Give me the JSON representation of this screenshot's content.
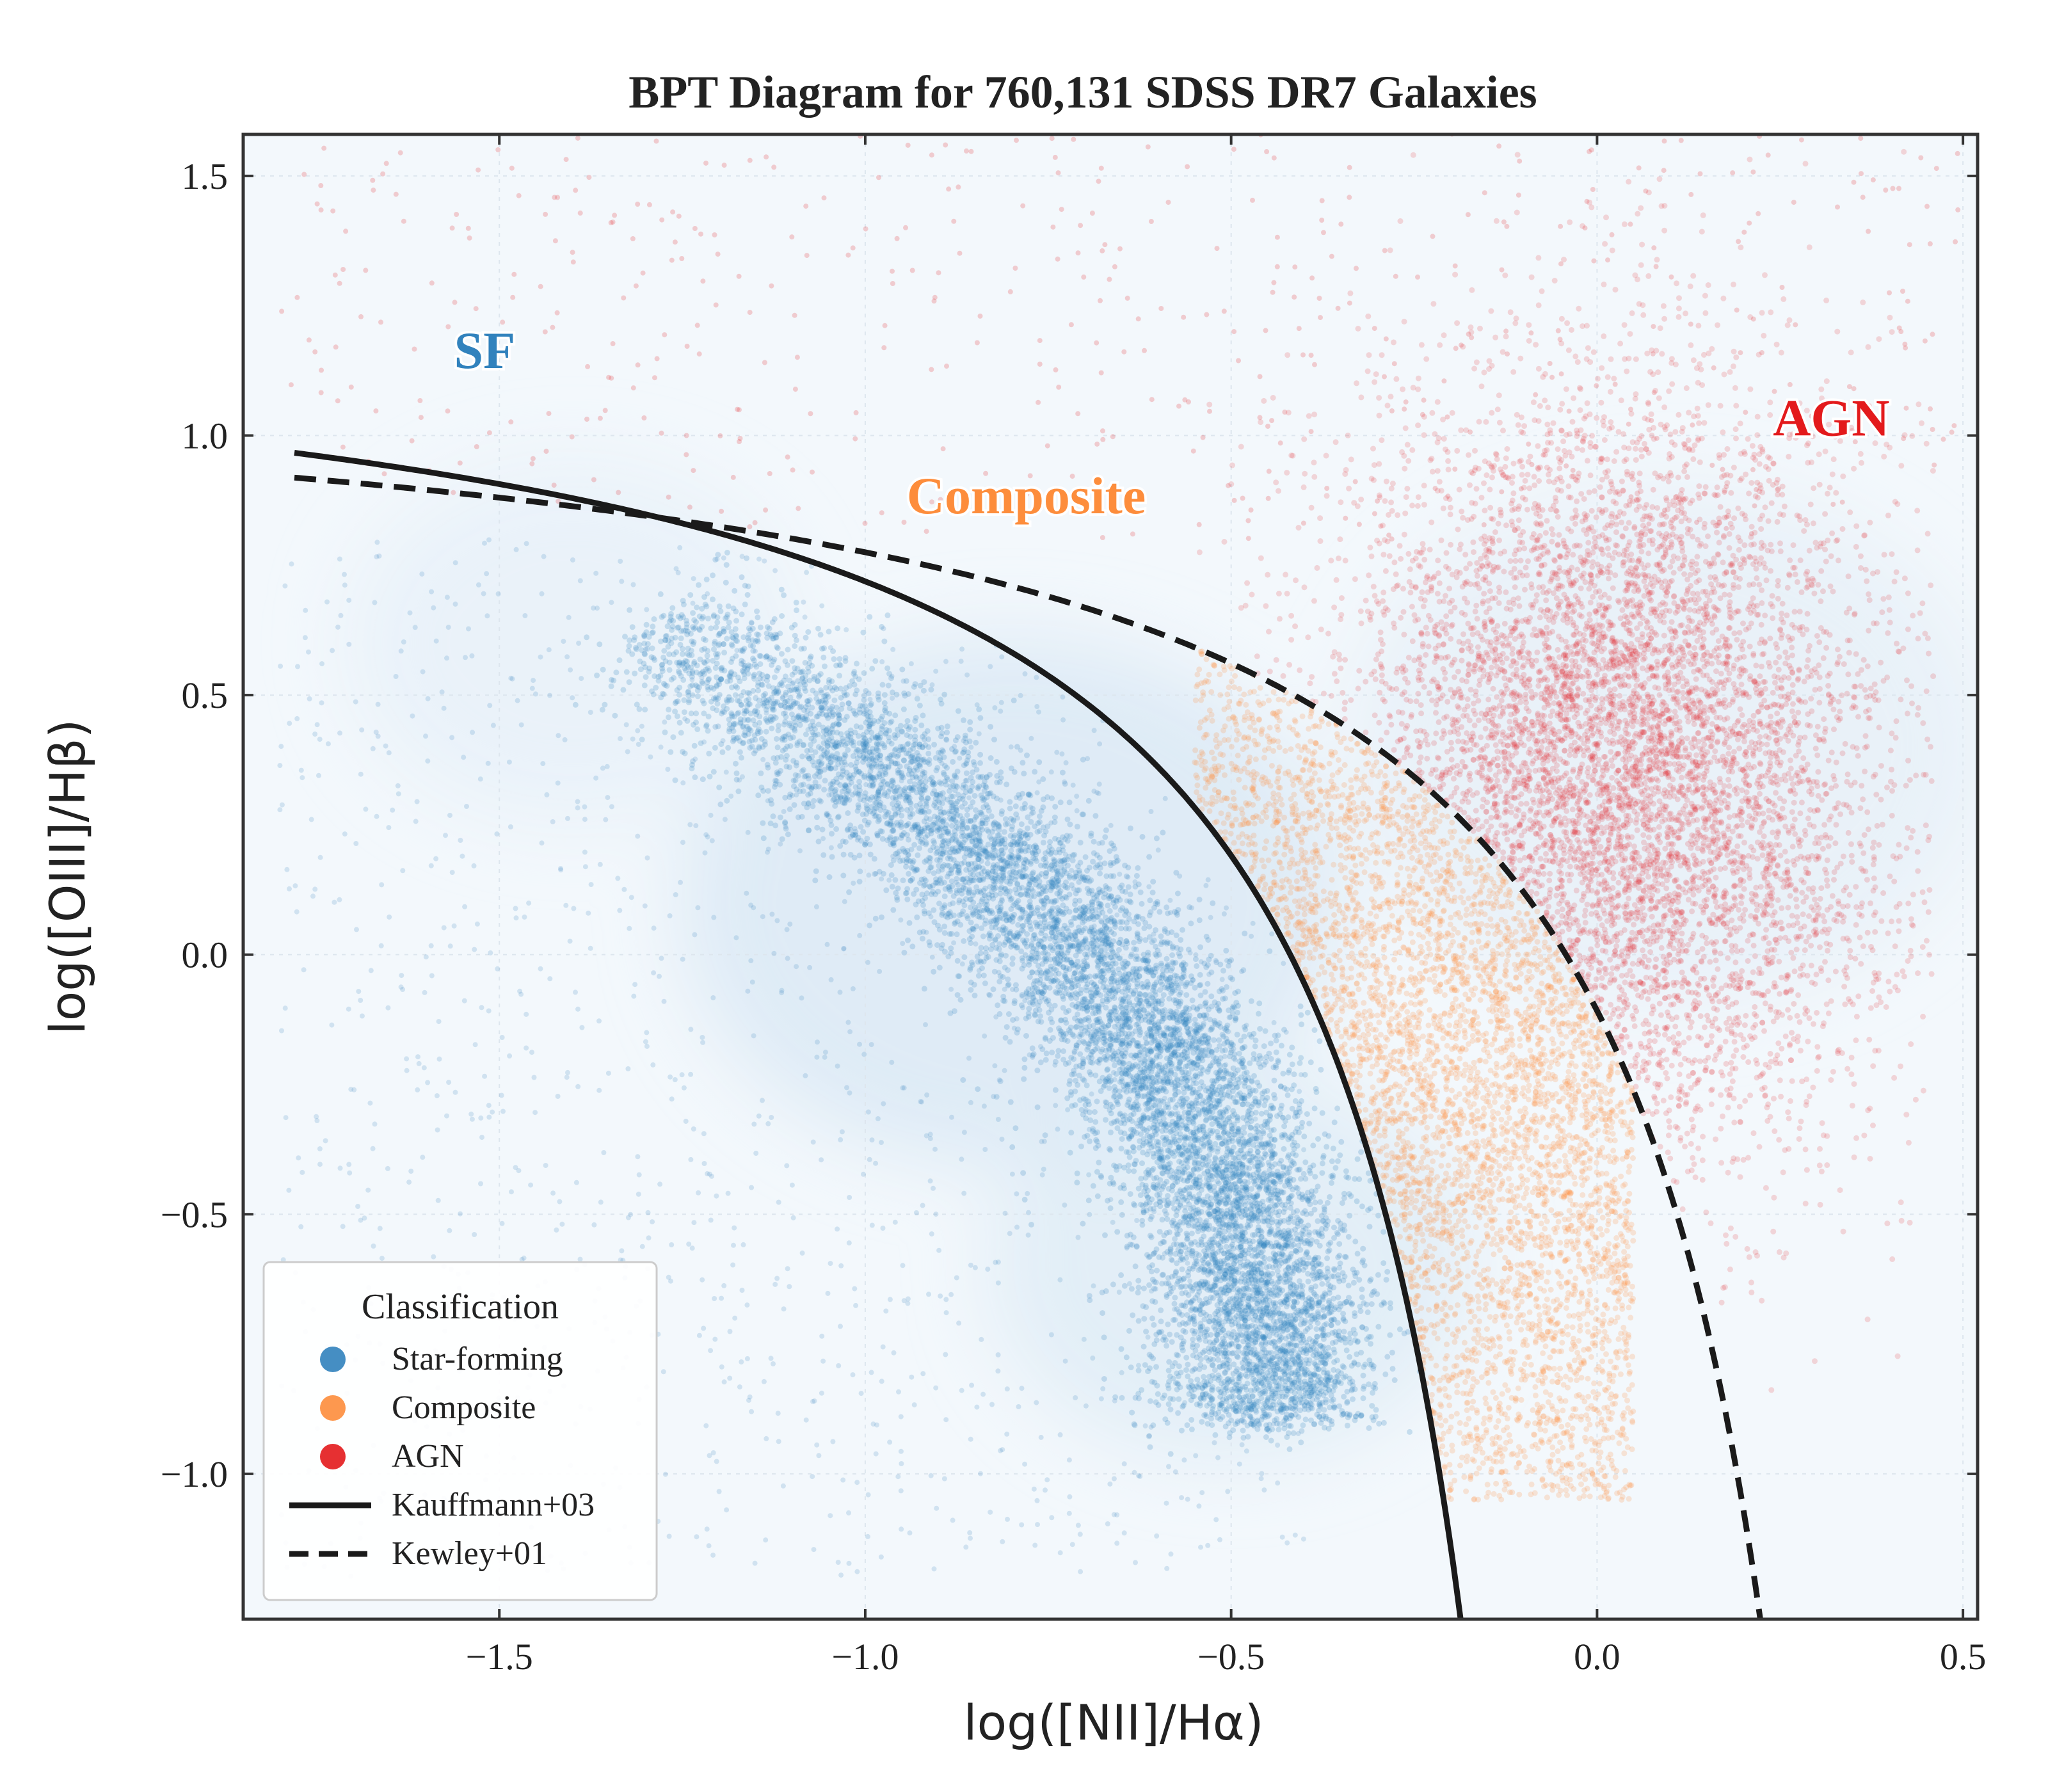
{
  "chart_data": {
    "type": "scatter",
    "title": "BPT Diagram for 760,131 SDSS DR7 Galaxies",
    "xlabel": "log([NII]/Hα)",
    "ylabel": "log([OIII]/Hβ)",
    "xlim": [
      -1.85,
      0.52
    ],
    "ylim": [
      -1.28,
      1.58
    ],
    "xticks": [
      -1.5,
      -1.0,
      -0.5,
      0.0,
      0.5
    ],
    "yticks": [
      -1.0,
      -0.5,
      0.0,
      0.5,
      1.0,
      1.5
    ],
    "xtick_labels": [
      "−1.5",
      "−1.0",
      "−0.5",
      "0.0",
      "0.5"
    ],
    "ytick_labels": [
      "−1.0",
      "−0.5",
      "0.0",
      "0.5",
      "1.0",
      "1.5"
    ],
    "grid": true,
    "background_hexbin": true,
    "legend": {
      "title": "Classification",
      "position": "lower-left",
      "entries": [
        {
          "label": "Star-forming",
          "kind": "marker",
          "color": "#3182bd"
        },
        {
          "label": "Composite",
          "kind": "marker",
          "color": "#fd8d3c"
        },
        {
          "label": "AGN",
          "kind": "marker",
          "color": "#e31a1c"
        },
        {
          "label": "Kauffmann+03",
          "kind": "solid-line",
          "color": "#1a1a1a"
        },
        {
          "label": "Kewley+01",
          "kind": "dashed-line",
          "color": "#1a1a1a"
        }
      ]
    },
    "annotations": [
      {
        "text": "SF",
        "x": -1.52,
        "y": 1.13,
        "color": "#3182bd"
      },
      {
        "text": "Composite",
        "x": -0.78,
        "y": 0.85,
        "color": "#fd8d3c"
      },
      {
        "text": "AGN",
        "x": 0.32,
        "y": 1.0,
        "color": "#e31a1c"
      }
    ],
    "curves": [
      {
        "name": "Kauffmann+03",
        "style": "solid",
        "equation": "y = 0.61/(x - 0.05) + 1.3",
        "x_range": [
          -1.78,
          -0.186
        ]
      },
      {
        "name": "Kewley+01",
        "style": "dashed",
        "equation": "y = 0.61/(x - 0.47) + 1.19",
        "x_range": [
          -1.78,
          0.223
        ]
      }
    ],
    "series": [
      {
        "name": "Star-forming",
        "color": "#3182bd",
        "count": 9000,
        "ridge": [
          [
            -1.3,
            0.65
          ],
          [
            -1.1,
            0.48
          ],
          [
            -0.9,
            0.26
          ],
          [
            -0.75,
            0.08
          ],
          [
            -0.62,
            -0.12
          ],
          [
            -0.52,
            -0.38
          ],
          [
            -0.46,
            -0.6
          ],
          [
            -0.44,
            -0.9
          ]
        ]
      },
      {
        "name": "Composite",
        "color": "#fd8d3c",
        "count": 5000,
        "region": "between Kauffmann+03 and Kewley+01"
      },
      {
        "name": "AGN",
        "color": "#e31a1c",
        "count": 7000,
        "center": [
          0.03,
          0.35
        ]
      }
    ]
  }
}
